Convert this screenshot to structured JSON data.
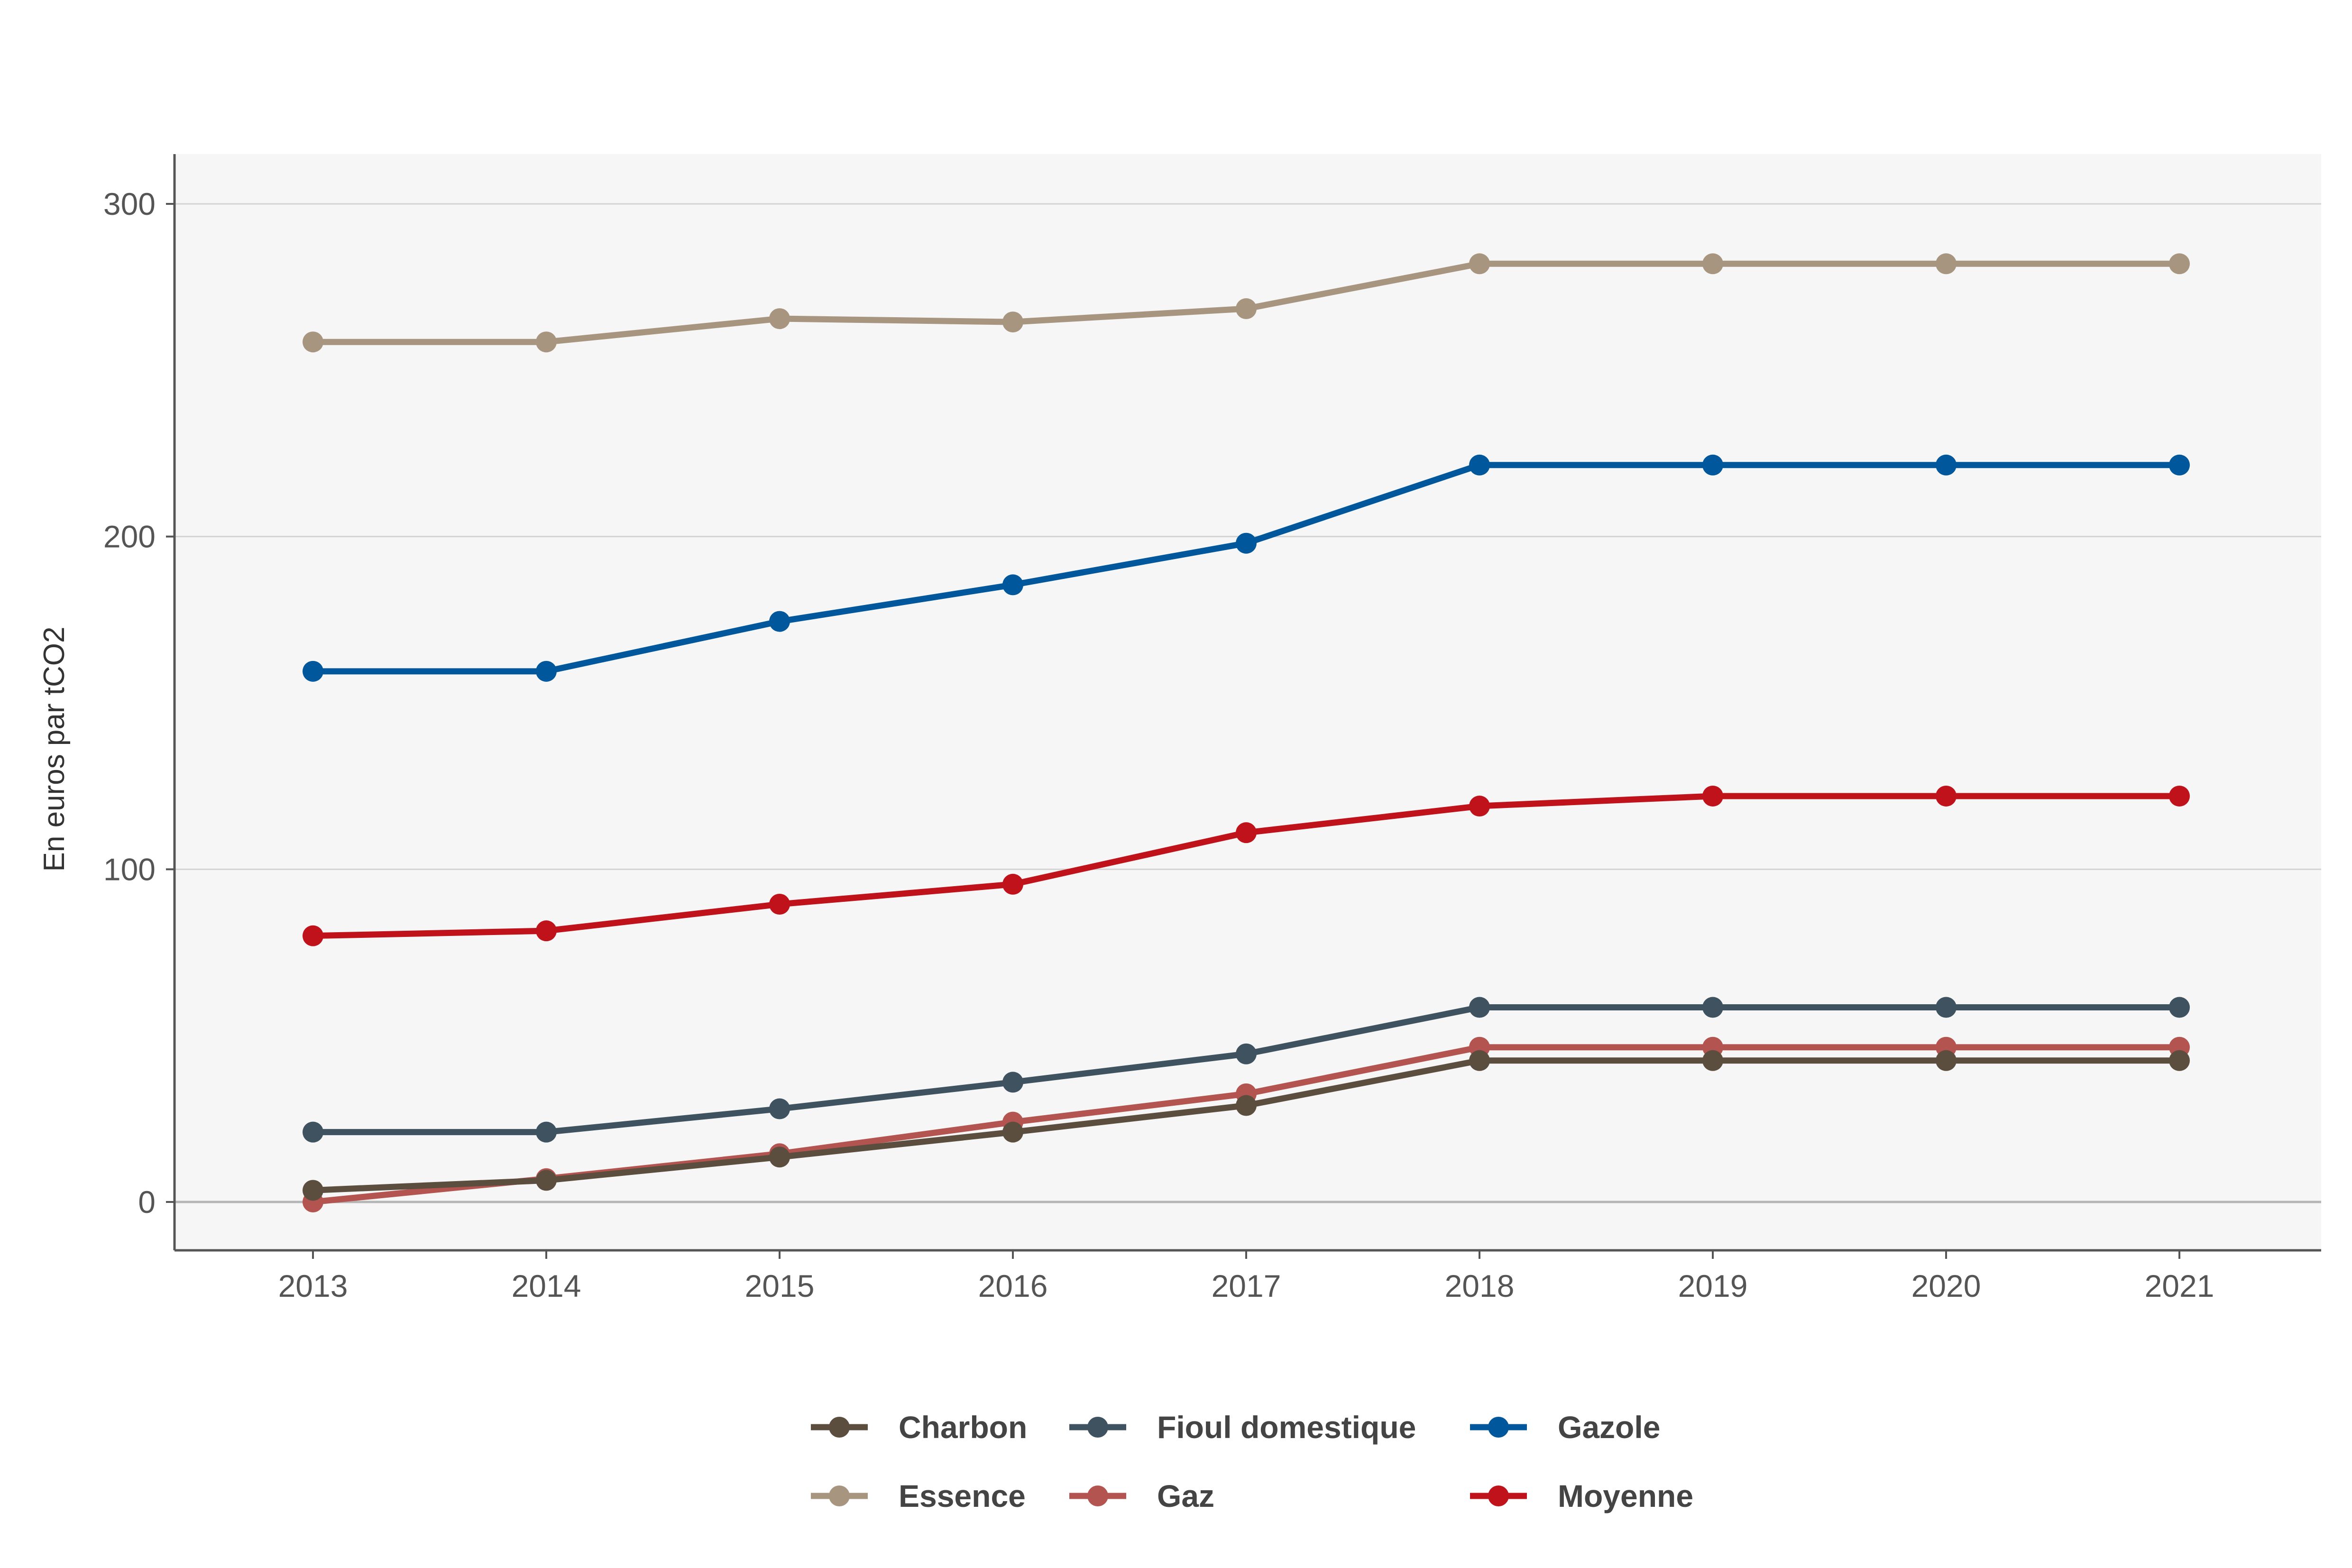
{
  "chart_data": {
    "type": "line",
    "x": [
      "2013",
      "2014",
      "2015",
      "2016",
      "2017",
      "2018",
      "2019",
      "2020",
      "2021"
    ],
    "ylabel": "En euros par tCO2",
    "ylim": [
      -15,
      315
    ],
    "yticks": [
      0,
      100,
      200,
      300
    ],
    "grid": "horizontal",
    "legend_position": "bottom",
    "series": [
      {
        "name": "Charbon",
        "color": "#5c4e3e",
        "values": [
          3.5,
          6.5,
          13.5,
          21,
          29,
          42.5,
          42.5,
          42.5,
          42.5
        ]
      },
      {
        "name": "Fioul domestique",
        "color": "#3f5260",
        "values": [
          21,
          21,
          28,
          36,
          44.5,
          58.5,
          58.5,
          58.5,
          58.5
        ]
      },
      {
        "name": "Gazole",
        "color": "#00579b",
        "values": [
          159.5,
          159.5,
          174.5,
          185.5,
          198,
          221.5,
          221.5,
          221.5,
          221.5
        ]
      },
      {
        "name": "Essence",
        "color": "#a89580",
        "values": [
          258.5,
          258.5,
          265.5,
          264.5,
          268.5,
          282,
          282,
          282,
          282
        ]
      },
      {
        "name": "Gaz",
        "color": "#b35450",
        "values": [
          0,
          7,
          14.5,
          24,
          32.5,
          46.5,
          46.5,
          46.5,
          46.5
        ]
      },
      {
        "name": "Moyenne",
        "color": "#c0121a",
        "values": [
          80,
          81.5,
          89.5,
          95.5,
          111,
          119,
          122,
          122,
          122
        ]
      }
    ]
  }
}
